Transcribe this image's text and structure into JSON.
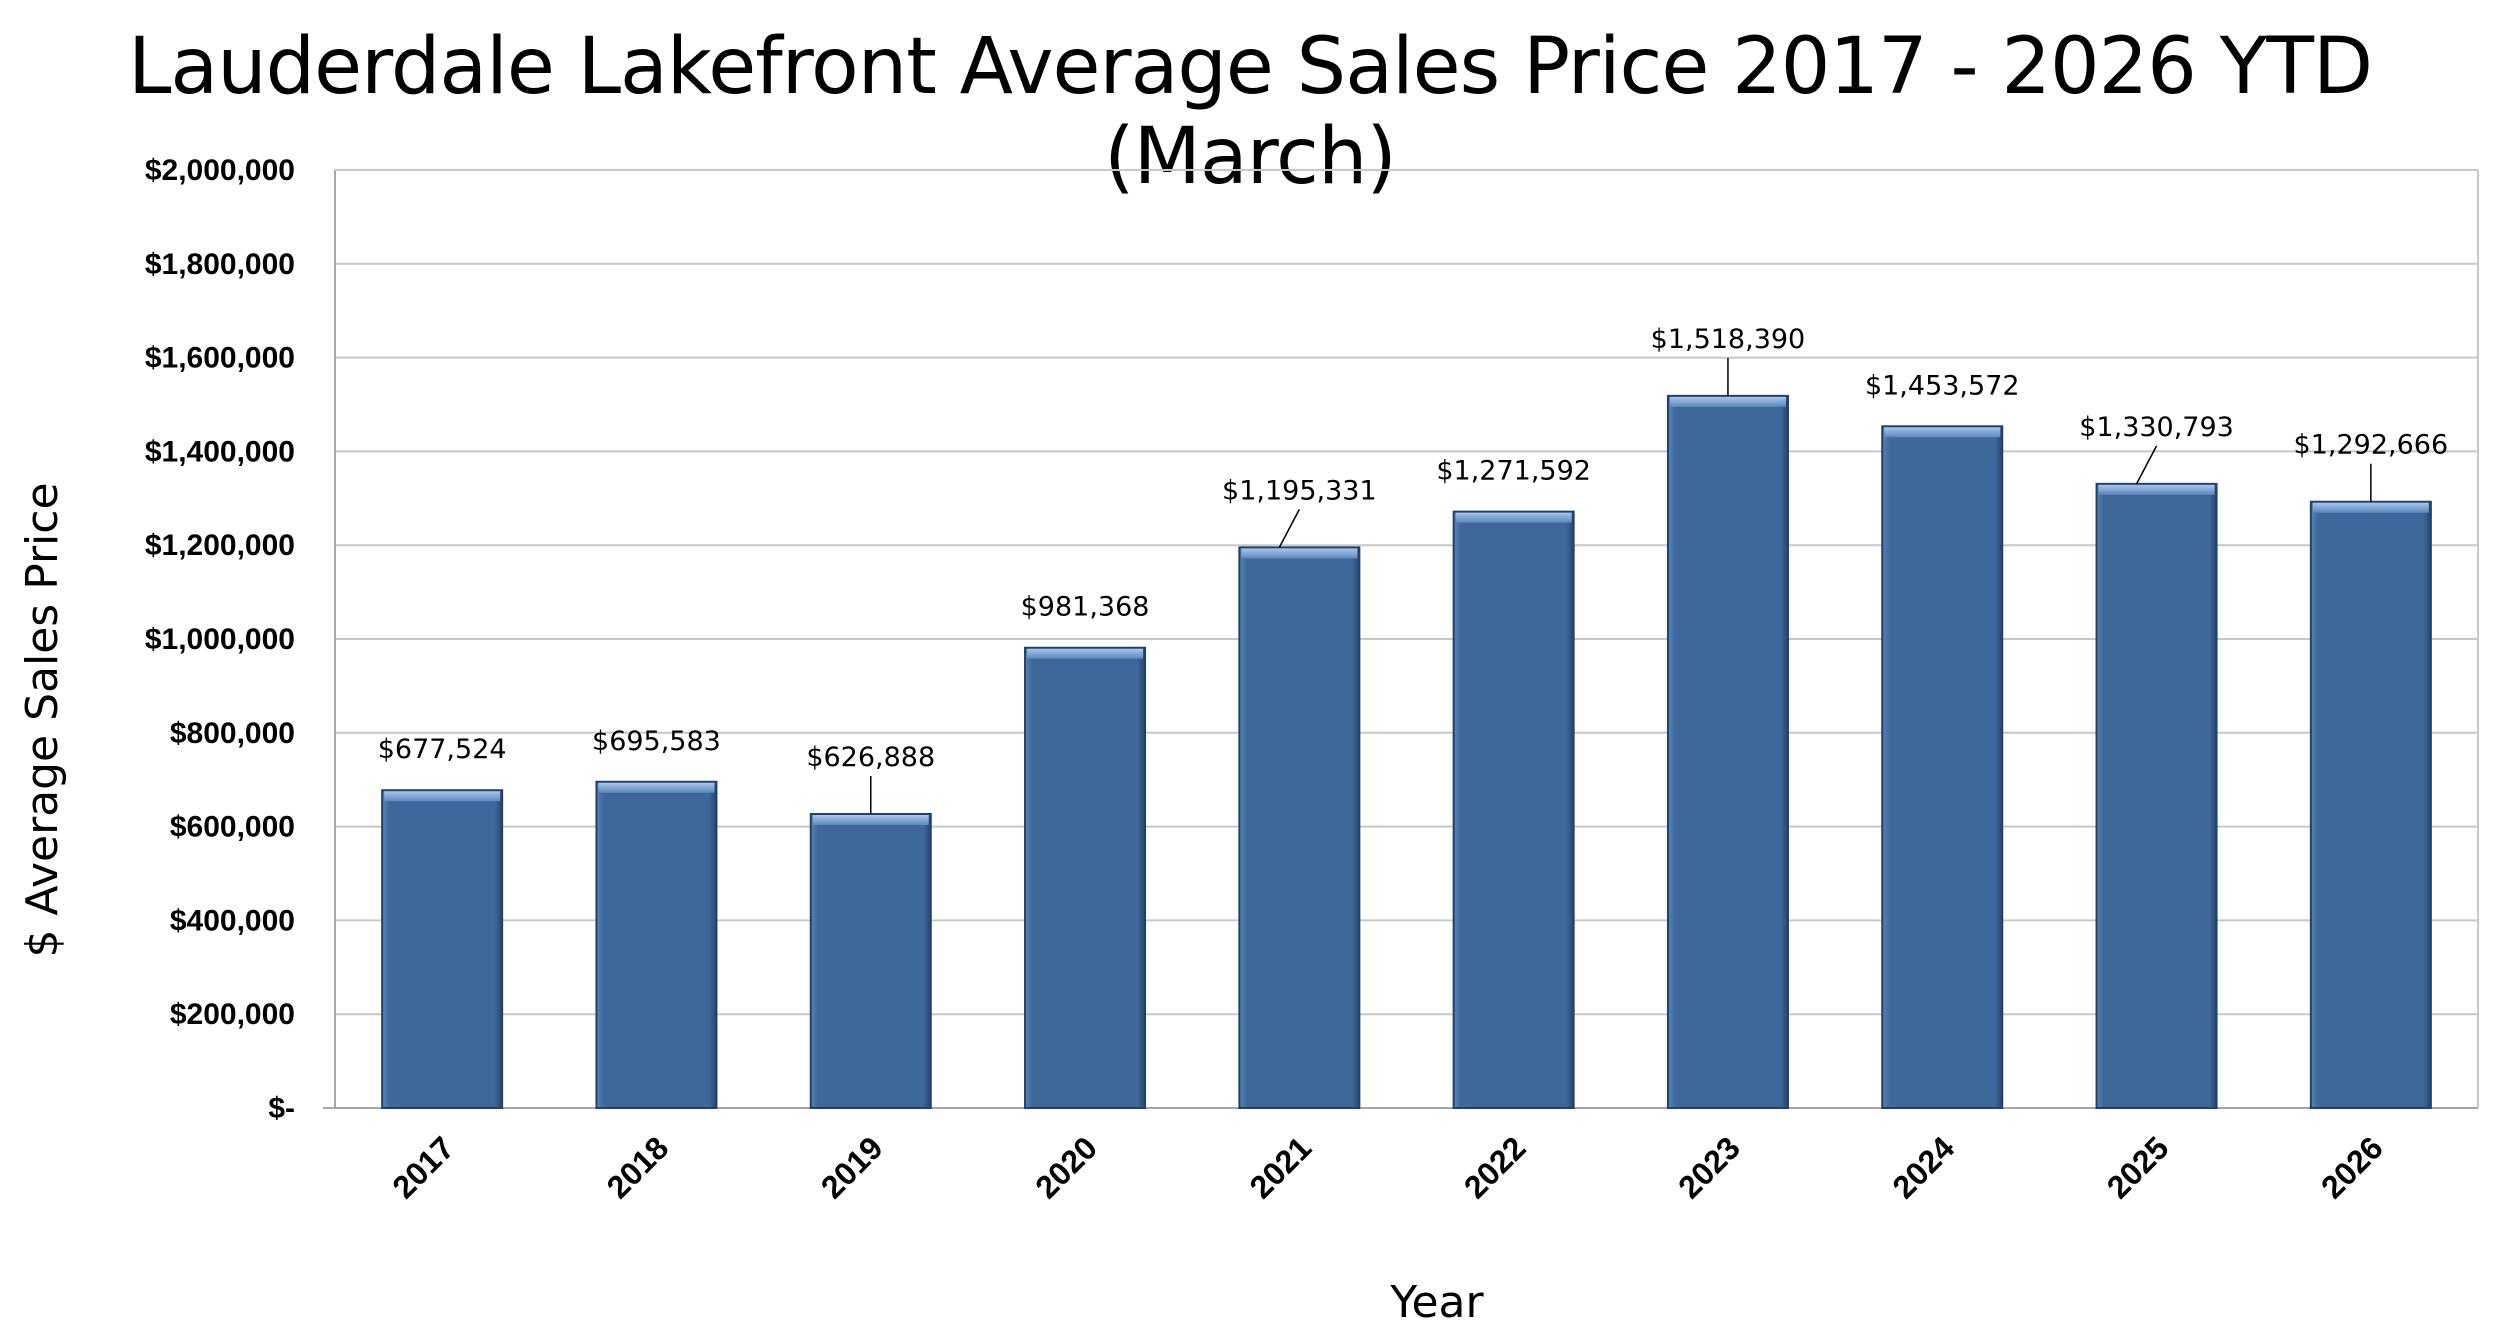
{
  "chart_data": {
    "type": "bar",
    "title": "Lauderdale Lakefront Average Sales Price 2017 - 2026 YTD (March)",
    "xlabel": "Year",
    "ylabel": "$ Average Sales Price",
    "categories": [
      "2017",
      "2018",
      "2019",
      "2020",
      "2021",
      "2022",
      "2023",
      "2024",
      "2025",
      "2026"
    ],
    "values": [
      677524,
      695583,
      626888,
      981368,
      1195331,
      1271592,
      1518390,
      1453572,
      1330793,
      1292666
    ],
    "value_labels": [
      "$677,524",
      "$695,583",
      "$626,888",
      "$981,368",
      "$1,195,331",
      "$1,271,592",
      "$1,518,390",
      "$1,453,572",
      "$1,330,793",
      "$1,292,666"
    ],
    "ylim": [
      0,
      2000000
    ],
    "yticks": [
      0,
      200000,
      400000,
      600000,
      800000,
      1000000,
      1200000,
      1400000,
      1600000,
      1800000,
      2000000
    ],
    "ytick_labels": [
      "$-",
      "$200,000",
      "$400,000",
      "$600,000",
      "$800,000",
      "$1,000,000",
      "$1,200,000",
      "$1,400,000",
      "$1,600,000",
      "$1,800,000",
      "$2,000,000"
    ],
    "grid": true,
    "legend": "none",
    "bar_color": "#3d6899"
  }
}
